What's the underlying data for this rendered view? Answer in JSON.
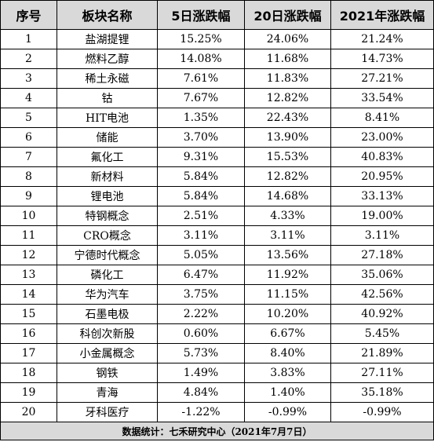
{
  "headers": [
    "序号",
    "板块名称",
    "5日涨跌幅",
    "20日涨跌幅",
    "2021年涨跌幅"
  ],
  "rows": [
    [
      "1",
      "盐湖提锂",
      "15.25%",
      "24.06%",
      "21.24%"
    ],
    [
      "2",
      "燃料乙醇",
      "14.08%",
      "11.68%",
      "14.73%"
    ],
    [
      "3",
      "稀土永磁",
      "7.61%",
      "11.83%",
      "27.21%"
    ],
    [
      "4",
      "钴",
      "7.67%",
      "12.82%",
      "33.54%"
    ],
    [
      "5",
      "HIT电池",
      "1.35%",
      "22.43%",
      "8.41%"
    ],
    [
      "6",
      "储能",
      "3.70%",
      "13.90%",
      "23.00%"
    ],
    [
      "7",
      "氟化工",
      "9.31%",
      "15.53%",
      "40.83%"
    ],
    [
      "8",
      "新材料",
      "5.84%",
      "12.82%",
      "20.95%"
    ],
    [
      "9",
      "锂电池",
      "5.84%",
      "14.68%",
      "33.13%"
    ],
    [
      "10",
      "特钢概念",
      "2.51%",
      "4.33%",
      "19.00%"
    ],
    [
      "11",
      "CRO概念",
      "3.11%",
      "3.11%",
      "3.11%"
    ],
    [
      "12",
      "宁德时代概念",
      "5.05%",
      "13.56%",
      "27.18%"
    ],
    [
      "13",
      "磷化工",
      "6.47%",
      "11.92%",
      "35.06%"
    ],
    [
      "14",
      "华为汽车",
      "3.75%",
      "11.15%",
      "42.56%"
    ],
    [
      "15",
      "石墨电极",
      "2.22%",
      "10.20%",
      "40.92%"
    ],
    [
      "16",
      "科创次新股",
      "0.60%",
      "6.67%",
      "5.45%"
    ],
    [
      "17",
      "小金属概念",
      "5.73%",
      "8.40%",
      "21.89%"
    ],
    [
      "18",
      "钢铁",
      "1.49%",
      "3.83%",
      "27.11%"
    ],
    [
      "19",
      "青海",
      "4.84%",
      "1.40%",
      "35.18%"
    ],
    [
      "20",
      "牙科医疗",
      "-1.22%",
      "-0.99%",
      "-0.99%"
    ]
  ],
  "footer": "数据统计：七禾研究中心（2021年7月7日）"
}
